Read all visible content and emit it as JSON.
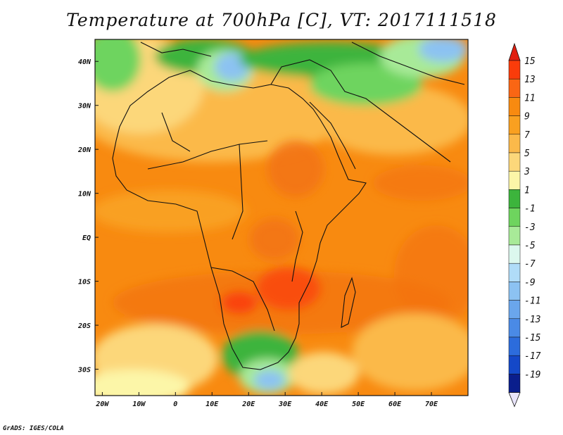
{
  "title": "Temperature at 700hPa [C], VT: 2017111518",
  "credit": "GrADS: IGES/COLA",
  "map": {
    "lon_range": [
      -22,
      80
    ],
    "lat_range": [
      -36,
      45
    ],
    "lon_ticks": [
      {
        "value": -20,
        "label": "20W"
      },
      {
        "value": -10,
        "label": "10W"
      },
      {
        "value": 0,
        "label": "0"
      },
      {
        "value": 10,
        "label": "10E"
      },
      {
        "value": 20,
        "label": "20E"
      },
      {
        "value": 30,
        "label": "30E"
      },
      {
        "value": 40,
        "label": "40E"
      },
      {
        "value": 50,
        "label": "50E"
      },
      {
        "value": 60,
        "label": "60E"
      },
      {
        "value": 70,
        "label": "70E"
      }
    ],
    "lat_ticks": [
      {
        "value": 40,
        "label": "40N"
      },
      {
        "value": 30,
        "label": "30N"
      },
      {
        "value": 20,
        "label": "20N"
      },
      {
        "value": 10,
        "label": "10N"
      },
      {
        "value": 0,
        "label": "EQ"
      },
      {
        "value": -10,
        "label": "10S"
      },
      {
        "value": -20,
        "label": "20S"
      },
      {
        "value": -30,
        "label": "30S"
      }
    ]
  },
  "colorbar": {
    "levels": [
      15,
      13,
      11,
      9,
      7,
      5,
      3,
      1,
      -1,
      -3,
      -5,
      -7,
      -9,
      -11,
      -13,
      -15,
      -17,
      -19
    ],
    "colors": [
      "#fa3c0a",
      "#fa6614",
      "#f88a10",
      "#f9a020",
      "#fbb94a",
      "#fcd77a",
      "#fcf6a8",
      "#3cb43c",
      "#6ed45e",
      "#a8ea98",
      "#dcf8ee",
      "#b0dcf8",
      "#8cc2f2",
      "#6aa6ec",
      "#4a8ae6",
      "#2c6cdc",
      "#1448c8",
      "#0a1e8c"
    ],
    "top_color": "#e11f0f",
    "bottom_color": "#e8e4fa"
  }
}
